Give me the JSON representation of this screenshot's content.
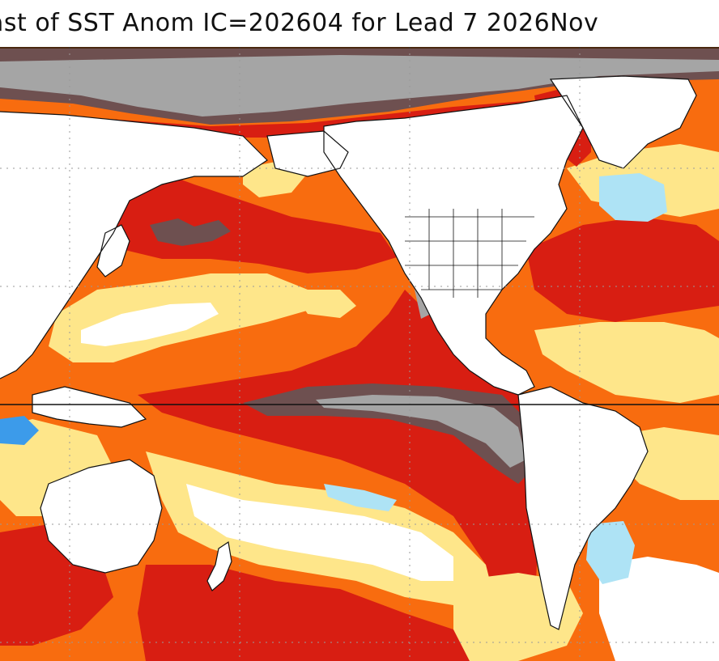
{
  "title": "ast of SST Anom IC=202604 for Lead 7 2026Nov",
  "colors": {
    "land": "#ffffff",
    "neutral": "#ffffff",
    "warm_1": "#fee68a",
    "warm_2": "#fdb45c",
    "warm_3": "#f86c0f",
    "warm_4": "#d81e12",
    "warm_5": "#6e5050",
    "warm_6": "#a5a5a5",
    "cool_1": "#aee3f5",
    "cool_2": "#3c9bea",
    "coast": "#111111",
    "grid": "#999999"
  },
  "icons": {
    "map": "sst-anomaly-map"
  }
}
